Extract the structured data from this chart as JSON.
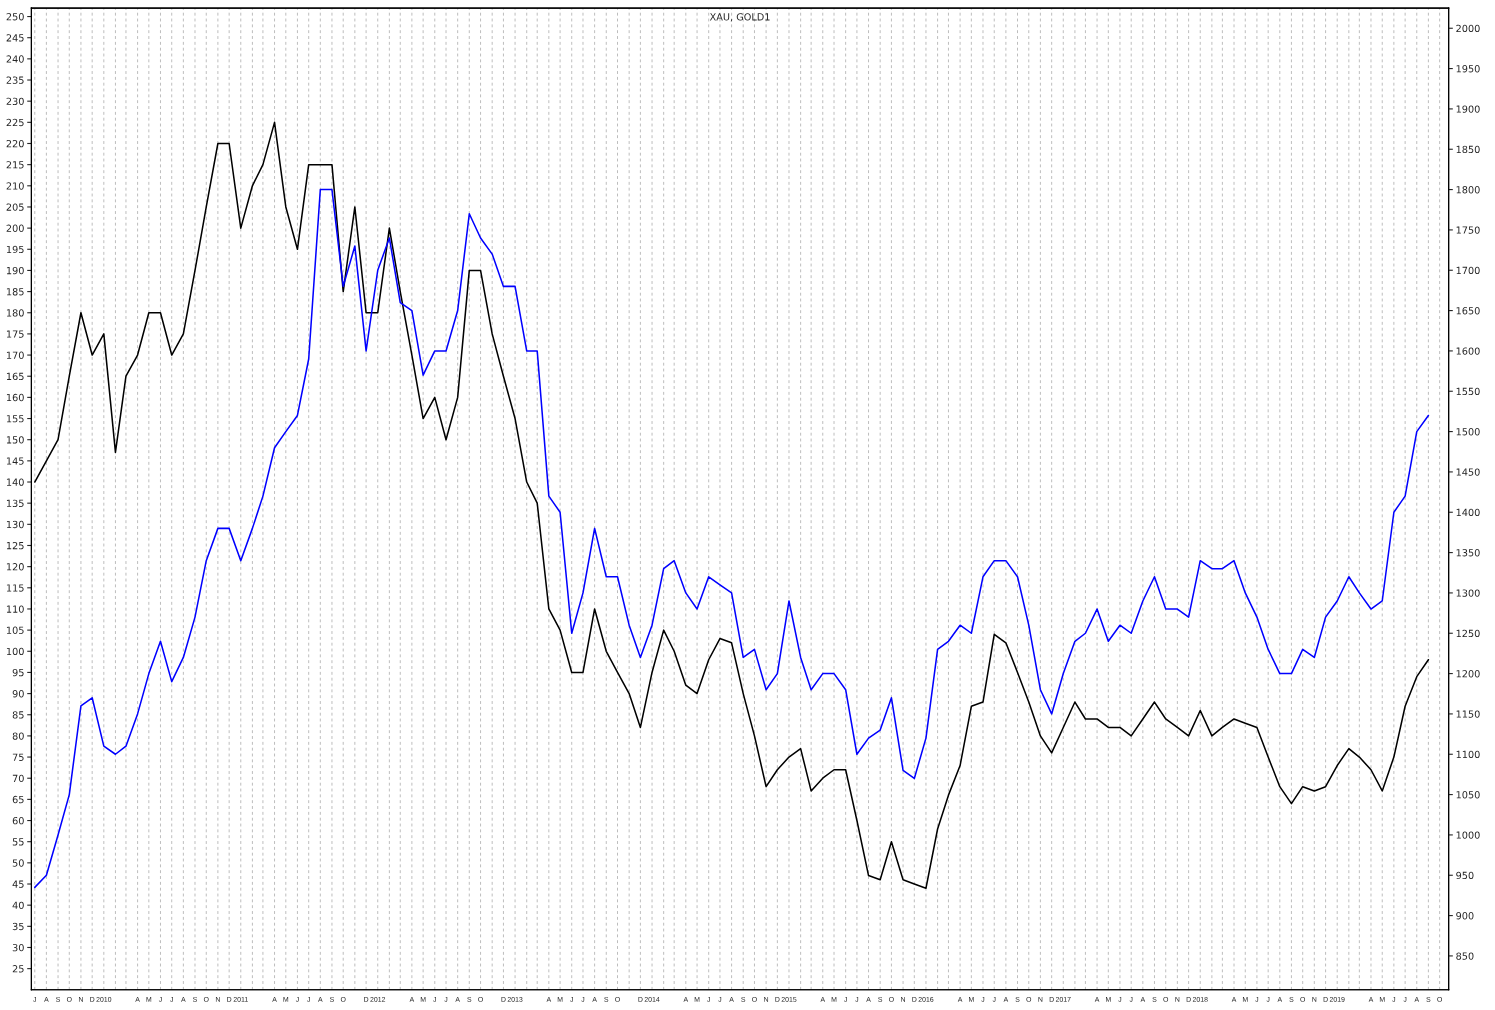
{
  "chart_data": {
    "type": "line",
    "title": "XAU, GOLD1",
    "x": [
      "2009-07",
      "2009-08",
      "2009-09",
      "2009-10",
      "2009-11",
      "2009-12",
      "2010-01",
      "2010-02",
      "2010-03",
      "2010-04",
      "2010-05",
      "2010-06",
      "2010-07",
      "2010-08",
      "2010-09",
      "2010-10",
      "2010-11",
      "2010-12",
      "2011-01",
      "2011-02",
      "2011-03",
      "2011-04",
      "2011-05",
      "2011-06",
      "2011-07",
      "2011-08",
      "2011-09",
      "2011-10",
      "2011-11",
      "2011-12",
      "2012-01",
      "2012-02",
      "2012-03",
      "2012-04",
      "2012-05",
      "2012-06",
      "2012-07",
      "2012-08",
      "2012-09",
      "2012-10",
      "2012-11",
      "2012-12",
      "2013-01",
      "2013-02",
      "2013-03",
      "2013-04",
      "2013-05",
      "2013-06",
      "2013-07",
      "2013-08",
      "2013-09",
      "2013-10",
      "2013-11",
      "2013-12",
      "2014-01",
      "2014-02",
      "2014-03",
      "2014-04",
      "2014-05",
      "2014-06",
      "2014-07",
      "2014-08",
      "2014-09",
      "2014-10",
      "2014-11",
      "2014-12",
      "2015-01",
      "2015-02",
      "2015-03",
      "2015-04",
      "2015-05",
      "2015-06",
      "2015-07",
      "2015-08",
      "2015-09",
      "2015-10",
      "2015-11",
      "2015-12",
      "2016-01",
      "2016-02",
      "2016-03",
      "2016-04",
      "2016-05",
      "2016-06",
      "2016-07",
      "2016-08",
      "2016-09",
      "2016-10",
      "2016-11",
      "2016-12",
      "2017-01",
      "2017-02",
      "2017-03",
      "2017-04",
      "2017-05",
      "2017-06",
      "2017-07",
      "2017-08",
      "2017-09",
      "2017-10",
      "2017-11",
      "2017-12",
      "2018-01",
      "2018-02",
      "2018-03",
      "2018-04",
      "2018-05",
      "2018-06",
      "2018-07",
      "2018-08",
      "2018-09",
      "2018-10",
      "2018-11",
      "2018-12",
      "2019-01",
      "2019-02",
      "2019-03",
      "2019-04",
      "2019-05",
      "2019-06",
      "2019-07",
      "2019-08",
      "2019-09"
    ],
    "series": [
      {
        "color": "#000000",
        "values": [
          140,
          145,
          150,
          165,
          180,
          170,
          175,
          147,
          165,
          170,
          180,
          180,
          170,
          175,
          190,
          205,
          220,
          220,
          200,
          210,
          215,
          225,
          205,
          195,
          215,
          215,
          215,
          185,
          205,
          180,
          180,
          200,
          185,
          170,
          155,
          160,
          150,
          160,
          190,
          190,
          175,
          165,
          155,
          140,
          135,
          110,
          105,
          95,
          95,
          110,
          100,
          95,
          90,
          82,
          95,
          105,
          100,
          92,
          90,
          98,
          103,
          102,
          90,
          80,
          68,
          72,
          75,
          77,
          67,
          70,
          72,
          72,
          60,
          47,
          46,
          55,
          46,
          45,
          44,
          58,
          66,
          73,
          87,
          88,
          104,
          102,
          95,
          88,
          80,
          76,
          82,
          88,
          84,
          84,
          82,
          82,
          80,
          84,
          88,
          84,
          82,
          80,
          86,
          80,
          82,
          84,
          83,
          82,
          75,
          68,
          64,
          68,
          67,
          68,
          73,
          77,
          75,
          72,
          67,
          75,
          87,
          94,
          98
        ]
      },
      {
        "color": "#0000ff",
        "axis": "y2",
        "values": [
          935,
          950,
          1000,
          1050,
          1160,
          1170,
          1110,
          1100,
          1110,
          1150,
          1200,
          1240,
          1190,
          1220,
          1270,
          1340,
          1380,
          1380,
          1340,
          1380,
          1420,
          1480,
          1500,
          1520,
          1590,
          1800,
          1800,
          1680,
          1730,
          1600,
          1700,
          1740,
          1660,
          1650,
          1570,
          1600,
          1600,
          1650,
          1770,
          1740,
          1720,
          1680,
          1680,
          1600,
          1600,
          1420,
          1400,
          1250,
          1300,
          1380,
          1320,
          1320,
          1260,
          1220,
          1260,
          1330,
          1340,
          1300,
          1280,
          1320,
          1310,
          1300,
          1220,
          1230,
          1180,
          1200,
          1290,
          1220,
          1180,
          1200,
          1200,
          1180,
          1100,
          1120,
          1130,
          1170,
          1080,
          1070,
          1120,
          1230,
          1240,
          1260,
          1250,
          1320,
          1340,
          1340,
          1320,
          1260,
          1180,
          1150,
          1200,
          1240,
          1250,
          1280,
          1240,
          1260,
          1250,
          1290,
          1320,
          1280,
          1280,
          1270,
          1340,
          1330,
          1330,
          1340,
          1300,
          1270,
          1230,
          1200,
          1200,
          1230,
          1220,
          1270,
          1290,
          1320,
          1300,
          1280,
          1290,
          1400,
          1420,
          1500,
          1520
        ]
      }
    ],
    "xlim": [
      "2009-06-22",
      "2019-10-25"
    ],
    "xticks": [
      {
        "value": "2009-07-01",
        "label": "J"
      },
      {
        "value": "2009-08-01",
        "label": "A"
      },
      {
        "value": "2009-09-01",
        "label": "S"
      },
      {
        "value": "2009-10-01",
        "label": "O"
      },
      {
        "value": "2009-11-01",
        "label": "N"
      },
      {
        "value": "2009-12-01",
        "label": "D"
      },
      {
        "value": "2010-01-01",
        "label": "2010"
      },
      {
        "value": "2010-02-01",
        "label": null
      },
      {
        "value": "2010-03-01",
        "label": null
      },
      {
        "value": "2010-04-01",
        "label": "A"
      },
      {
        "value": "2010-05-01",
        "label": "M"
      },
      {
        "value": "2010-06-01",
        "label": "J"
      },
      {
        "value": "2010-07-01",
        "label": "J"
      },
      {
        "value": "2010-08-01",
        "label": "A"
      },
      {
        "value": "2010-09-01",
        "label": "S"
      },
      {
        "value": "2010-10-01",
        "label": "O"
      },
      {
        "value": "2010-11-01",
        "label": "N"
      },
      {
        "value": "2010-12-01",
        "label": "D"
      },
      {
        "value": "2011-01-01",
        "label": "2011"
      },
      {
        "value": "2011-02-01",
        "label": null
      },
      {
        "value": "2011-03-01",
        "label": null
      },
      {
        "value": "2011-04-01",
        "label": "A"
      },
      {
        "value": "2011-05-01",
        "label": "M"
      },
      {
        "value": "2011-06-01",
        "label": "J"
      },
      {
        "value": "2011-07-01",
        "label": "J"
      },
      {
        "value": "2011-08-01",
        "label": "A"
      },
      {
        "value": "2011-09-01",
        "label": "S"
      },
      {
        "value": "2011-10-01",
        "label": "O"
      },
      {
        "value": "2011-11-01",
        "label": null
      },
      {
        "value": "2011-12-01",
        "label": "D"
      },
      {
        "value": "2012-01-01",
        "label": "2012"
      },
      {
        "value": "2012-02-01",
        "label": null
      },
      {
        "value": "2012-03-01",
        "label": null
      },
      {
        "value": "2012-04-01",
        "label": "A"
      },
      {
        "value": "2012-05-01",
        "label": "M"
      },
      {
        "value": "2012-06-01",
        "label": "J"
      },
      {
        "value": "2012-07-01",
        "label": "J"
      },
      {
        "value": "2012-08-01",
        "label": "A"
      },
      {
        "value": "2012-09-01",
        "label": "S"
      },
      {
        "value": "2012-10-01",
        "label": "O"
      },
      {
        "value": "2012-11-01",
        "label": null
      },
      {
        "value": "2012-12-01",
        "label": "D"
      },
      {
        "value": "2013-01-01",
        "label": "2013"
      },
      {
        "value": "2013-02-01",
        "label": null
      },
      {
        "value": "2013-03-01",
        "label": null
      },
      {
        "value": "2013-04-01",
        "label": "A"
      },
      {
        "value": "2013-05-01",
        "label": "M"
      },
      {
        "value": "2013-06-01",
        "label": "J"
      },
      {
        "value": "2013-07-01",
        "label": "J"
      },
      {
        "value": "2013-08-01",
        "label": "A"
      },
      {
        "value": "2013-09-01",
        "label": "S"
      },
      {
        "value": "2013-10-01",
        "label": "O"
      },
      {
        "value": "2013-11-01",
        "label": null
      },
      {
        "value": "2013-12-01",
        "label": "D"
      },
      {
        "value": "2014-01-01",
        "label": "2014"
      },
      {
        "value": "2014-02-01",
        "label": null
      },
      {
        "value": "2014-03-01",
        "label": null
      },
      {
        "value": "2014-04-01",
        "label": "A"
      },
      {
        "value": "2014-05-01",
        "label": "M"
      },
      {
        "value": "2014-06-01",
        "label": "J"
      },
      {
        "value": "2014-07-01",
        "label": "J"
      },
      {
        "value": "2014-08-01",
        "label": "A"
      },
      {
        "value": "2014-09-01",
        "label": "S"
      },
      {
        "value": "2014-10-01",
        "label": "O"
      },
      {
        "value": "2014-11-01",
        "label": "N"
      },
      {
        "value": "2014-12-01",
        "label": "D"
      },
      {
        "value": "2015-01-01",
        "label": "2015"
      },
      {
        "value": "2015-02-01",
        "label": null
      },
      {
        "value": "2015-03-01",
        "label": null
      },
      {
        "value": "2015-04-01",
        "label": "A"
      },
      {
        "value": "2015-05-01",
        "label": "M"
      },
      {
        "value": "2015-06-01",
        "label": "J"
      },
      {
        "value": "2015-07-01",
        "label": "J"
      },
      {
        "value": "2015-08-01",
        "label": "A"
      },
      {
        "value": "2015-09-01",
        "label": "S"
      },
      {
        "value": "2015-10-01",
        "label": "O"
      },
      {
        "value": "2015-11-01",
        "label": "N"
      },
      {
        "value": "2015-12-01",
        "label": "D"
      },
      {
        "value": "2016-01-01",
        "label": "2016"
      },
      {
        "value": "2016-02-01",
        "label": null
      },
      {
        "value": "2016-03-01",
        "label": null
      },
      {
        "value": "2016-04-01",
        "label": "A"
      },
      {
        "value": "2016-05-01",
        "label": "M"
      },
      {
        "value": "2016-06-01",
        "label": "J"
      },
      {
        "value": "2016-07-01",
        "label": "J"
      },
      {
        "value": "2016-08-01",
        "label": "A"
      },
      {
        "value": "2016-09-01",
        "label": "S"
      },
      {
        "value": "2016-10-01",
        "label": "O"
      },
      {
        "value": "2016-11-01",
        "label": "N"
      },
      {
        "value": "2016-12-01",
        "label": "D"
      },
      {
        "value": "2017-01-01",
        "label": "2017"
      },
      {
        "value": "2017-02-01",
        "label": null
      },
      {
        "value": "2017-03-01",
        "label": null
      },
      {
        "value": "2017-04-01",
        "label": "A"
      },
      {
        "value": "2017-05-01",
        "label": "M"
      },
      {
        "value": "2017-06-01",
        "label": "J"
      },
      {
        "value": "2017-07-01",
        "label": "J"
      },
      {
        "value": "2017-08-01",
        "label": "A"
      },
      {
        "value": "2017-09-01",
        "label": "S"
      },
      {
        "value": "2017-10-01",
        "label": "O"
      },
      {
        "value": "2017-11-01",
        "label": "N"
      },
      {
        "value": "2017-12-01",
        "label": "D"
      },
      {
        "value": "2018-01-01",
        "label": "2018"
      },
      {
        "value": "2018-02-01",
        "label": null
      },
      {
        "value": "2018-03-01",
        "label": null
      },
      {
        "value": "2018-04-01",
        "label": "A"
      },
      {
        "value": "2018-05-01",
        "label": "M"
      },
      {
        "value": "2018-06-01",
        "label": "J"
      },
      {
        "value": "2018-07-01",
        "label": "J"
      },
      {
        "value": "2018-08-01",
        "label": "A"
      },
      {
        "value": "2018-09-01",
        "label": "S"
      },
      {
        "value": "2018-10-01",
        "label": "O"
      },
      {
        "value": "2018-11-01",
        "label": "N"
      },
      {
        "value": "2018-12-01",
        "label": "D"
      },
      {
        "value": "2019-01-01",
        "label": "2019"
      },
      {
        "value": "2019-02-01",
        "label": null
      },
      {
        "value": "2019-03-01",
        "label": null
      },
      {
        "value": "2019-04-01",
        "label": "A"
      },
      {
        "value": "2019-05-01",
        "label": "M"
      },
      {
        "value": "2019-06-01",
        "label": "J"
      },
      {
        "value": "2019-07-01",
        "label": "J"
      },
      {
        "value": "2019-08-01",
        "label": "A"
      },
      {
        "value": "2019-09-01",
        "label": "S"
      },
      {
        "value": "2019-10-01",
        "label": "O"
      }
    ],
    "ylim": [
      20,
      252
    ],
    "yticks": [
      25,
      30,
      35,
      40,
      45,
      50,
      55,
      60,
      65,
      70,
      75,
      80,
      85,
      90,
      95,
      100,
      105,
      110,
      115,
      120,
      125,
      130,
      135,
      140,
      145,
      150,
      155,
      160,
      165,
      170,
      175,
      180,
      185,
      190,
      195,
      200,
      205,
      210,
      215,
      220,
      225,
      230,
      235,
      240,
      245,
      250
    ],
    "y2lim": [
      808,
      2025
    ],
    "y2ticks": [
      850,
      900,
      950,
      1000,
      1050,
      1100,
      1150,
      1200,
      1250,
      1300,
      1350,
      1400,
      1450,
      1500,
      1550,
      1600,
      1650,
      1700,
      1750,
      1800,
      1850,
      1900,
      1950,
      2000
    ],
    "grid": "x",
    "legend": false
  }
}
